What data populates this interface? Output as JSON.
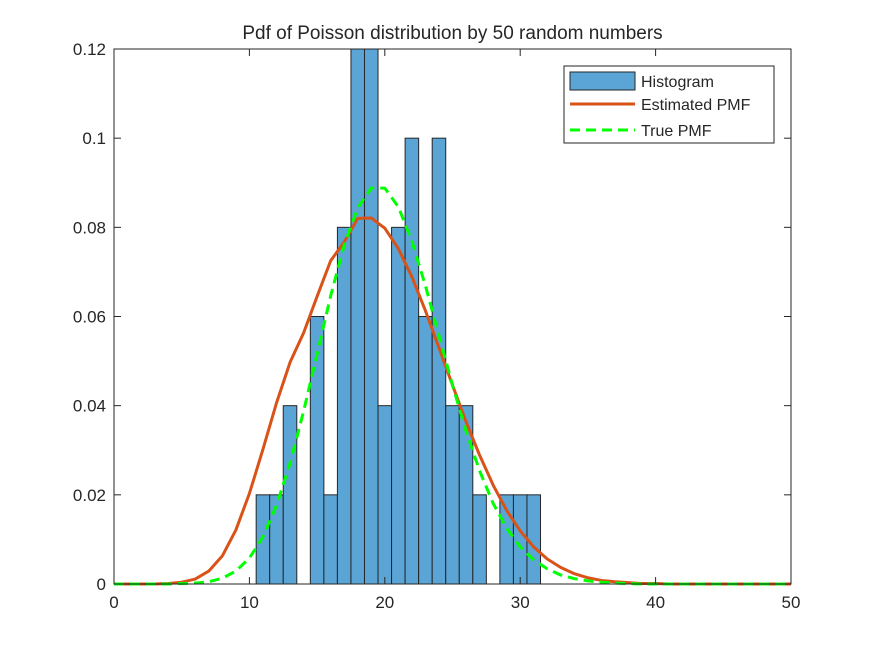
{
  "chart_data": {
    "type": "bar",
    "title": "Pdf of Poisson distribution by 50 random numbers",
    "xlabel": "",
    "ylabel": "",
    "xlim": [
      0,
      50
    ],
    "ylim": [
      0,
      0.12
    ],
    "xticks": [
      0,
      10,
      20,
      30,
      40,
      50
    ],
    "yticks": [
      0,
      0.02,
      0.04,
      0.06,
      0.08,
      0.1,
      0.12
    ],
    "xtick_labels": [
      "0",
      "10",
      "20",
      "30",
      "40",
      "50"
    ],
    "ytick_labels": [
      "0",
      "0.02",
      "0.04",
      "0.06",
      "0.08",
      "0.1",
      "0.12"
    ],
    "grid": false,
    "legend_position": "top-right",
    "histogram": {
      "name": "Histogram",
      "color": "#5ba4d6",
      "bin_width": 1,
      "bins": [
        {
          "x": 11,
          "value": 0.02
        },
        {
          "x": 12,
          "value": 0.02
        },
        {
          "x": 13,
          "value": 0.04
        },
        {
          "x": 15,
          "value": 0.06
        },
        {
          "x": 16,
          "value": 0.02
        },
        {
          "x": 17,
          "value": 0.08
        },
        {
          "x": 18,
          "value": 0.12
        },
        {
          "x": 19,
          "value": 0.12
        },
        {
          "x": 20,
          "value": 0.04
        },
        {
          "x": 21,
          "value": 0.08
        },
        {
          "x": 22,
          "value": 0.1
        },
        {
          "x": 23,
          "value": 0.06
        },
        {
          "x": 24,
          "value": 0.1
        },
        {
          "x": 25,
          "value": 0.04
        },
        {
          "x": 26,
          "value": 0.04
        },
        {
          "x": 27,
          "value": 0.02
        },
        {
          "x": 29,
          "value": 0.02
        },
        {
          "x": 30,
          "value": 0.02
        },
        {
          "x": 31,
          "value": 0.02
        }
      ]
    },
    "series": [
      {
        "name": "Estimated PMF",
        "color": "#d95319",
        "style": "solid",
        "x": [
          0,
          1,
          2,
          3,
          4,
          5,
          6,
          7,
          8,
          9,
          10,
          11,
          12,
          13,
          14,
          15,
          16,
          17,
          18,
          19,
          20,
          21,
          22,
          23,
          24,
          25,
          26,
          27,
          28,
          29,
          30,
          31,
          32,
          33,
          34,
          35,
          36,
          37,
          38,
          39,
          40,
          41,
          42,
          43,
          44,
          45,
          46,
          47,
          48,
          49,
          50
        ],
        "y": [
          0,
          0,
          0,
          0,
          0.0001,
          0.0004,
          0.0011,
          0.0029,
          0.0063,
          0.0121,
          0.0203,
          0.0302,
          0.0406,
          0.0497,
          0.0563,
          0.0645,
          0.0725,
          0.0767,
          0.082,
          0.0821,
          0.0798,
          0.0752,
          0.0689,
          0.0613,
          0.053,
          0.0446,
          0.0364,
          0.0289,
          0.0222,
          0.0165,
          0.0119,
          0.0083,
          0.0056,
          0.0037,
          0.0023,
          0.0014,
          0.0008,
          0.0005,
          0.0003,
          0.0001,
          0.0001,
          0,
          0,
          0,
          0,
          0,
          0,
          0,
          0,
          0,
          0
        ]
      },
      {
        "name": "True PMF",
        "color": "#00ff00",
        "style": "dashed",
        "x": [
          0,
          1,
          2,
          3,
          4,
          5,
          6,
          7,
          8,
          9,
          10,
          11,
          12,
          13,
          14,
          15,
          16,
          17,
          18,
          19,
          20,
          21,
          22,
          23,
          24,
          25,
          26,
          27,
          28,
          29,
          30,
          31,
          32,
          33,
          34,
          35,
          36,
          37,
          38,
          39,
          40,
          41,
          42,
          43,
          44,
          45,
          46,
          47,
          48,
          49,
          50
        ],
        "y": [
          0,
          0,
          0,
          0,
          0,
          0.0001,
          0.0002,
          0.0005,
          0.0013,
          0.0029,
          0.0058,
          0.0106,
          0.0176,
          0.0271,
          0.0387,
          0.0516,
          0.0646,
          0.076,
          0.0844,
          0.0888,
          0.0888,
          0.0846,
          0.0769,
          0.0669,
          0.0557,
          0.0446,
          0.0343,
          0.0254,
          0.0181,
          0.0125,
          0.0083,
          0.0054,
          0.0034,
          0.002,
          0.0012,
          0.0007,
          0.0004,
          0.0002,
          0.0001,
          0,
          0,
          0,
          0,
          0,
          0,
          0,
          0,
          0,
          0,
          0,
          0
        ]
      }
    ]
  }
}
